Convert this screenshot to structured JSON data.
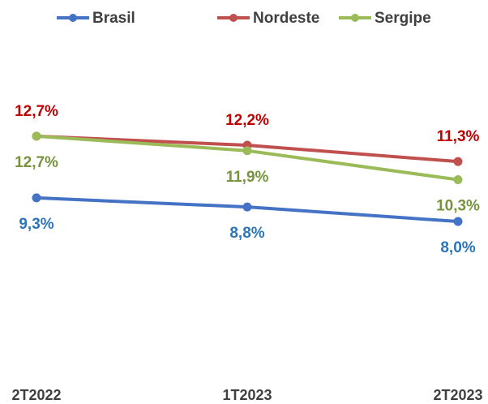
{
  "chart_data": {
    "type": "line",
    "categories": [
      "2T2022",
      "1T2023",
      "2T2023"
    ],
    "ylim": [
      0,
      16
    ],
    "legend": "top",
    "series": [
      {
        "name": "Brasil",
        "color": "#4472c4",
        "label_color": "#2e75b6",
        "values": [
          9.3,
          8.8,
          8.0
        ],
        "value_labels": [
          "9,3%",
          "8,8%",
          "8,0%"
        ]
      },
      {
        "name": "Nordeste",
        "color": "#c0504d",
        "label_color": "#c00000",
        "values": [
          12.7,
          12.2,
          11.3
        ],
        "value_labels": [
          "12,7%",
          "12,2%",
          "11,3%"
        ]
      },
      {
        "name": "Sergipe",
        "color": "#9bbb59",
        "label_color": "#77933c",
        "values": [
          12.7,
          11.9,
          10.3
        ],
        "value_labels": [
          "12,7%",
          "11,9%",
          "10,3%"
        ]
      }
    ]
  }
}
